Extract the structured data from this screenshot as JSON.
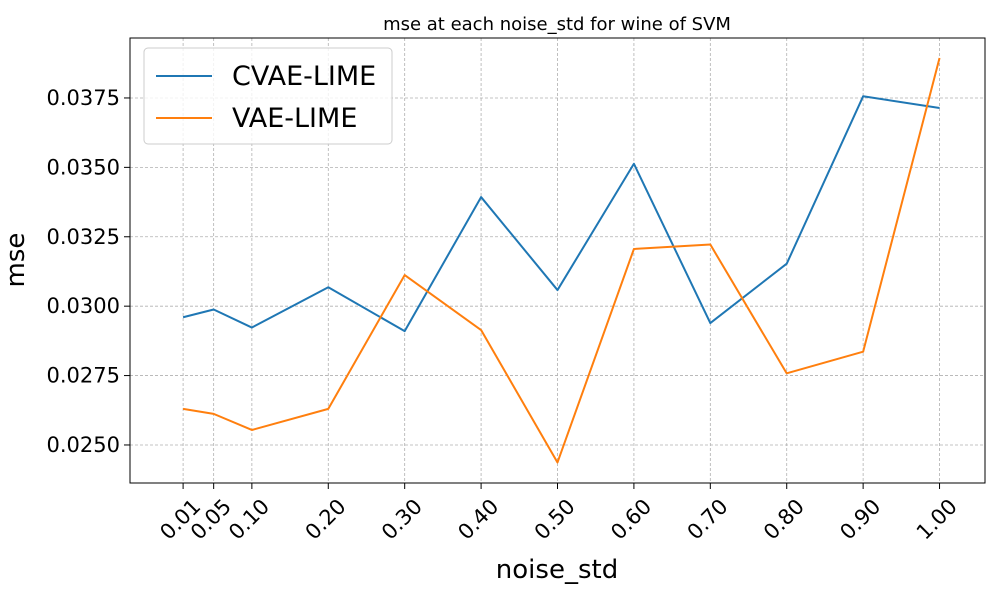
{
  "chart_data": {
    "type": "line",
    "title": "mse at each noise_std for wine of SVM",
    "xlabel": "noise_std",
    "ylabel": "mse",
    "x": [
      0.01,
      0.05,
      0.1,
      0.2,
      0.3,
      0.4,
      0.5,
      0.6,
      0.7,
      0.8,
      0.9,
      1.0
    ],
    "x_tick_labels": [
      "0.01",
      "0.05",
      "0.10",
      "0.20",
      "0.30",
      "0.40",
      "0.50",
      "0.60",
      "0.70",
      "0.80",
      "0.90",
      "1.00"
    ],
    "y_ticks": [
      0.025,
      0.0275,
      0.03,
      0.0325,
      0.035,
      0.0375
    ],
    "y_tick_labels": [
      "0.0250",
      "0.0275",
      "0.0300",
      "0.0325",
      "0.0350",
      "0.0375"
    ],
    "xlim": [
      -0.0595,
      1.0595
    ],
    "ylim": [
      0.02363,
      0.03966
    ],
    "grid": true,
    "legend_position": "top-left",
    "series": [
      {
        "name": "CVAE-LIME",
        "color": "#1f77b4",
        "values": [
          0.0296,
          0.02988,
          0.02923,
          0.03068,
          0.0291,
          0.03393,
          0.03058,
          0.03513,
          0.02939,
          0.03153,
          0.03756,
          0.03714
        ]
      },
      {
        "name": "VAE-LIME",
        "color": "#ff7f0e",
        "values": [
          0.0263,
          0.02612,
          0.02554,
          0.0263,
          0.03112,
          0.02914,
          0.02437,
          0.03206,
          0.03222,
          0.02758,
          0.02836,
          0.03894
        ]
      }
    ]
  }
}
